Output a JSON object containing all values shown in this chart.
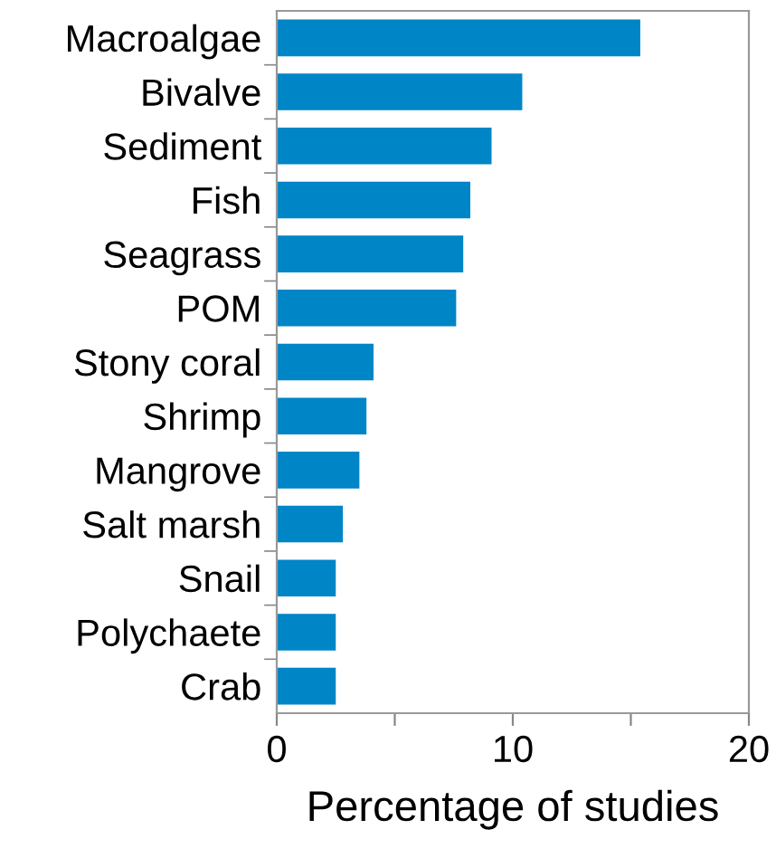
{
  "chart_data": {
    "type": "bar",
    "orientation": "horizontal",
    "xlabel": "Percentage of studies",
    "categories": [
      "Macroalgae",
      "Bivalve",
      "Sediment",
      "Fish",
      "Seagrass",
      "POM",
      "Stony coral",
      "Shrimp",
      "Mangrove",
      "Salt marsh",
      "Snail",
      "Polychaete",
      "Crab"
    ],
    "values": [
      15.4,
      10.4,
      9.1,
      8.2,
      7.9,
      7.6,
      4.1,
      3.8,
      3.5,
      2.8,
      2.5,
      2.5,
      2.5
    ],
    "color": "#0085c7",
    "xlim": [
      0,
      20
    ],
    "xticks": [
      0,
      {
        "value": 5,
        "label": null
      },
      10,
      {
        "value": 15,
        "label": null
      },
      20
    ],
    "grid": false
  }
}
